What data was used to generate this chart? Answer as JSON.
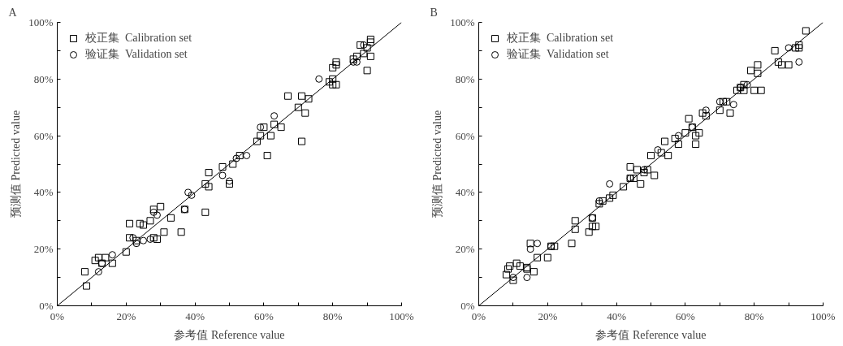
{
  "chart_data": [
    {
      "type": "scatter",
      "title": "A",
      "xlabel": "参考值 Reference value",
      "ylabel": "预测值 Predicted value",
      "legend": "top left",
      "grid": false,
      "xlim": [
        0,
        100
      ],
      "ylim": [
        0,
        100
      ],
      "xticks": [
        {
          "value": 0,
          "label": "0%"
        },
        {
          "value": 10,
          "label": null
        },
        {
          "value": 20,
          "label": "20%"
        },
        {
          "value": 30,
          "label": null
        },
        {
          "value": 40,
          "label": "40%"
        },
        {
          "value": 50,
          "label": null
        },
        {
          "value": 60,
          "label": "60%"
        },
        {
          "value": 70,
          "label": null
        },
        {
          "value": 80,
          "label": "80%"
        },
        {
          "value": 90,
          "label": null
        },
        {
          "value": 100,
          "label": "100%"
        }
      ],
      "yticks": [
        {
          "value": 0,
          "label": "0%"
        },
        {
          "value": 10,
          "label": null
        },
        {
          "value": 20,
          "label": "20%"
        },
        {
          "value": 30,
          "label": null
        },
        {
          "value": 40,
          "label": "40%"
        },
        {
          "value": 50,
          "label": null
        },
        {
          "value": 60,
          "label": "60%"
        },
        {
          "value": 70,
          "label": null
        },
        {
          "value": 80,
          "label": "80%"
        },
        {
          "value": 90,
          "label": null
        },
        {
          "value": 100,
          "label": "100%"
        }
      ],
      "series": [
        {
          "name": "校正集  Calibration set",
          "marker": "square",
          "color": "#000000",
          "x": [
            8,
            8.5,
            11,
            12,
            13,
            14,
            16,
            20,
            21,
            21,
            23,
            24,
            25,
            27,
            28,
            28,
            29,
            30,
            31,
            33,
            36,
            37,
            43,
            43,
            44,
            44,
            48,
            50,
            51,
            53,
            58,
            59,
            60,
            61,
            62,
            63,
            65,
            67,
            70,
            71,
            71,
            72,
            73,
            79,
            80,
            80,
            80,
            81,
            81,
            81,
            86,
            87,
            88,
            89,
            90,
            90,
            91,
            91,
            91
          ],
          "values": [
            12,
            7,
            16,
            17,
            15,
            17,
            15,
            19,
            24,
            29,
            23,
            29,
            28.5,
            30,
            34,
            24,
            23.5,
            35,
            26,
            31,
            26,
            34,
            33,
            43,
            42,
            47,
            49,
            43,
            50,
            53,
            58,
            60,
            63,
            53,
            60,
            64,
            63,
            74,
            70,
            58,
            74,
            68,
            73,
            79,
            78,
            80,
            84,
            86,
            85,
            78,
            87,
            88,
            92,
            89,
            91,
            83,
            94,
            93,
            88
          ]
        },
        {
          "name": "验证集  Validation set",
          "marker": "circle",
          "color": "#000000",
          "x": [
            12,
            13,
            16,
            22,
            23,
            25,
            27,
            28,
            29,
            37,
            38,
            39,
            48,
            50,
            52,
            55,
            59,
            63,
            76,
            86,
            87,
            89
          ],
          "values": [
            12,
            15,
            18,
            24,
            22,
            23,
            23.5,
            33,
            32,
            34,
            40,
            39,
            46,
            44,
            52,
            53,
            63,
            67,
            80,
            86,
            86,
            92
          ]
        },
        {
          "type": "line",
          "color": "#000000",
          "line_style": "solid",
          "x": [
            0,
            100
          ],
          "values": [
            0,
            100
          ]
        }
      ]
    },
    {
      "type": "scatter",
      "title": "B",
      "xlabel": "参考值 Reference value",
      "ylabel": "预测值 Predicted value",
      "legend": "top left",
      "grid": false,
      "xlim": [
        0,
        100
      ],
      "ylim": [
        0,
        100
      ],
      "xticks": [
        {
          "value": 0,
          "label": "0%"
        },
        {
          "value": 10,
          "label": null
        },
        {
          "value": 20,
          "label": "20%"
        },
        {
          "value": 30,
          "label": null
        },
        {
          "value": 40,
          "label": "40%"
        },
        {
          "value": 50,
          "label": null
        },
        {
          "value": 60,
          "label": "60%"
        },
        {
          "value": 70,
          "label": null
        },
        {
          "value": 80,
          "label": "80%"
        },
        {
          "value": 90,
          "label": null
        },
        {
          "value": 100,
          "label": "100%"
        }
      ],
      "yticks": [
        {
          "value": 0,
          "label": "0%"
        },
        {
          "value": 10,
          "label": null
        },
        {
          "value": 20,
          "label": "20%"
        },
        {
          "value": 30,
          "label": null
        },
        {
          "value": 40,
          "label": "40%"
        },
        {
          "value": 50,
          "label": null
        },
        {
          "value": 60,
          "label": "60%"
        },
        {
          "value": 70,
          "label": null
        },
        {
          "value": 80,
          "label": "80%"
        },
        {
          "value": 90,
          "label": null
        },
        {
          "value": 100,
          "label": "100%"
        }
      ],
      "series": [
        {
          "name": "校正集  Calibration set",
          "marker": "square",
          "color": "#000000",
          "x": [
            8,
            8.5,
            9,
            10,
            11,
            12,
            14,
            14,
            15,
            16,
            17,
            20,
            21,
            22,
            27,
            28,
            28,
            32,
            33,
            33,
            34,
            35,
            36,
            38,
            39,
            42,
            44,
            44,
            45,
            46,
            47,
            48,
            49,
            50,
            51,
            53,
            54,
            55,
            57,
            58,
            60,
            61,
            62,
            63,
            63,
            64,
            65,
            66,
            70,
            71,
            72,
            73,
            75,
            76,
            77,
            77,
            79,
            80,
            81,
            81,
            82,
            86,
            87,
            88,
            90,
            92,
            93,
            93,
            95
          ],
          "values": [
            11,
            13,
            14,
            9,
            15,
            14,
            13,
            13.5,
            22,
            12,
            17,
            17,
            21,
            21,
            22,
            30,
            27,
            26,
            31,
            28,
            28,
            36,
            37,
            38,
            39,
            42,
            45,
            49,
            45,
            48,
            43,
            47,
            48,
            53,
            46,
            54,
            58,
            53,
            59,
            57,
            61,
            66,
            63,
            60,
            57,
            61,
            68,
            67,
            69,
            72,
            72,
            68,
            76,
            77,
            76,
            78,
            83,
            76,
            85,
            82,
            76,
            90,
            86,
            85,
            85,
            91,
            91,
            92,
            97
          ]
        },
        {
          "name": "验证集  Validation set",
          "marker": "circle",
          "color": "#000000",
          "x": [
            10,
            14,
            15,
            17,
            21,
            33,
            35,
            38,
            44,
            48,
            52,
            58,
            62,
            66,
            70,
            74,
            76,
            78,
            90,
            93
          ],
          "values": [
            10,
            10,
            20,
            22,
            21,
            31,
            37,
            43,
            45,
            48,
            55,
            60,
            63,
            69,
            72,
            71,
            77,
            78,
            91,
            86
          ]
        },
        {
          "type": "line",
          "color": "#000000",
          "line_style": "solid",
          "x": [
            0,
            100
          ],
          "values": [
            0,
            100
          ]
        }
      ]
    }
  ]
}
